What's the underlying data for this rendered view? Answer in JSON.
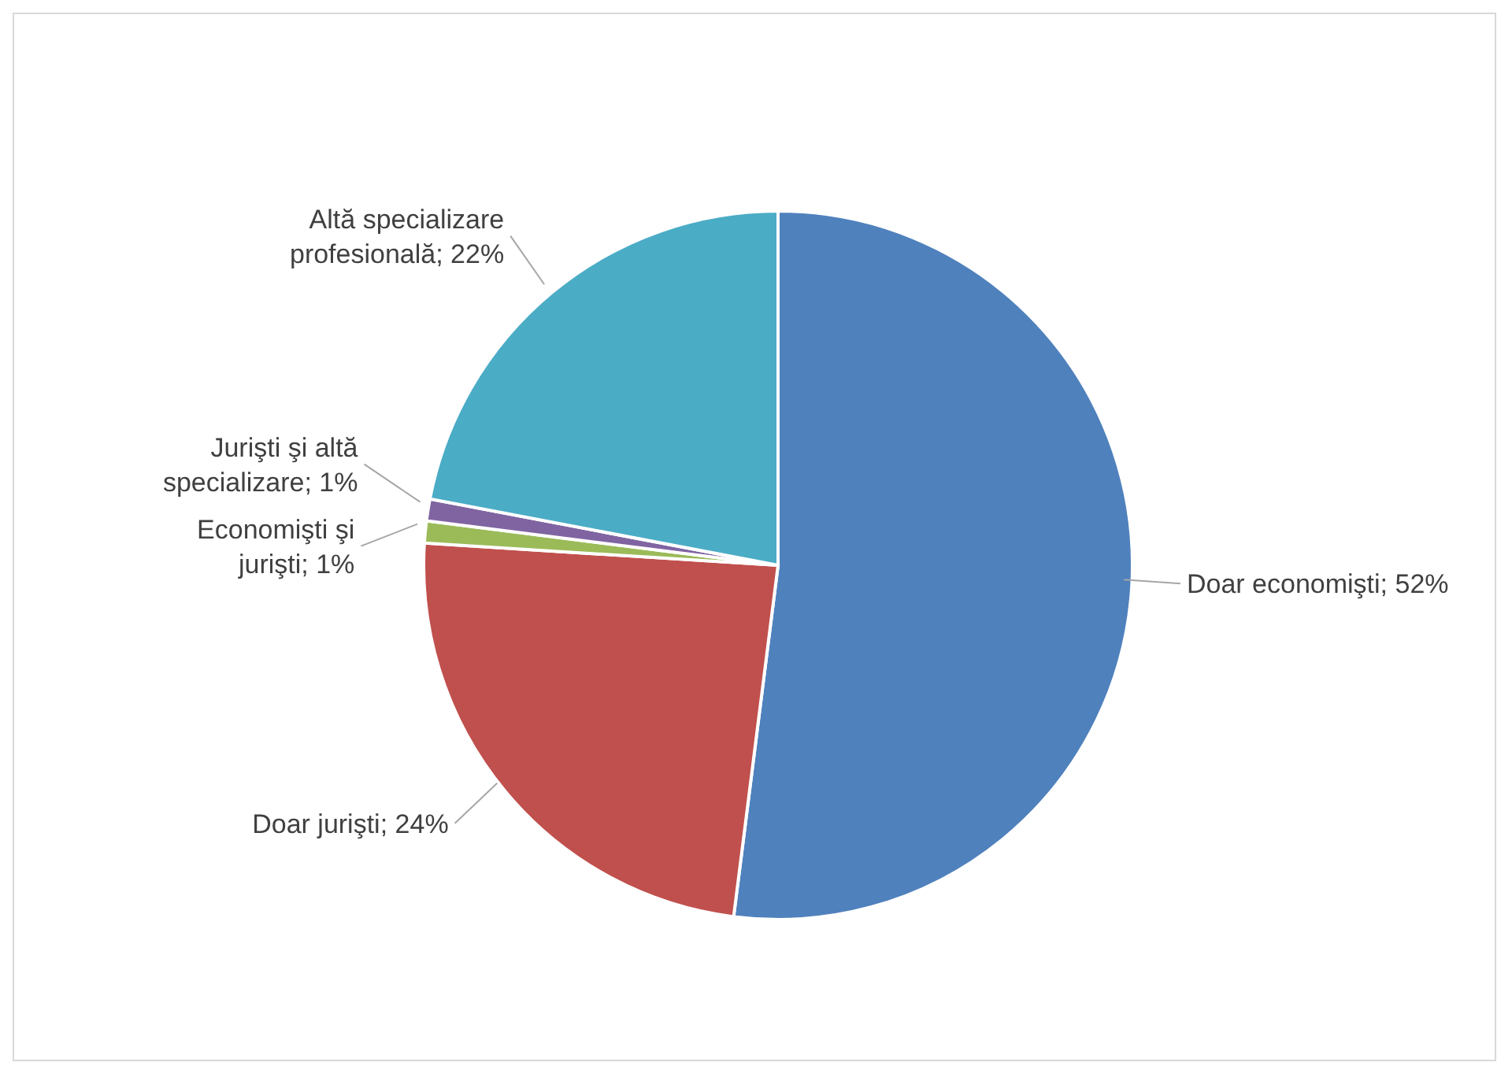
{
  "chart_data": {
    "type": "pie",
    "categories": [
      "Doar economişti",
      "Doar jurişti",
      "Economişti şi jurişti",
      "Jurişti şi altă specializare",
      "Altă specializare profesională"
    ],
    "values": [
      52,
      24,
      1,
      1,
      22
    ],
    "value_labels": [
      "52%",
      "24%",
      "1%",
      "1%",
      "22%"
    ],
    "colors": [
      "#4f81bd",
      "#c0504d",
      "#9bbb59",
      "#8064a2",
      "#4bacc6"
    ],
    "legend": false
  }
}
